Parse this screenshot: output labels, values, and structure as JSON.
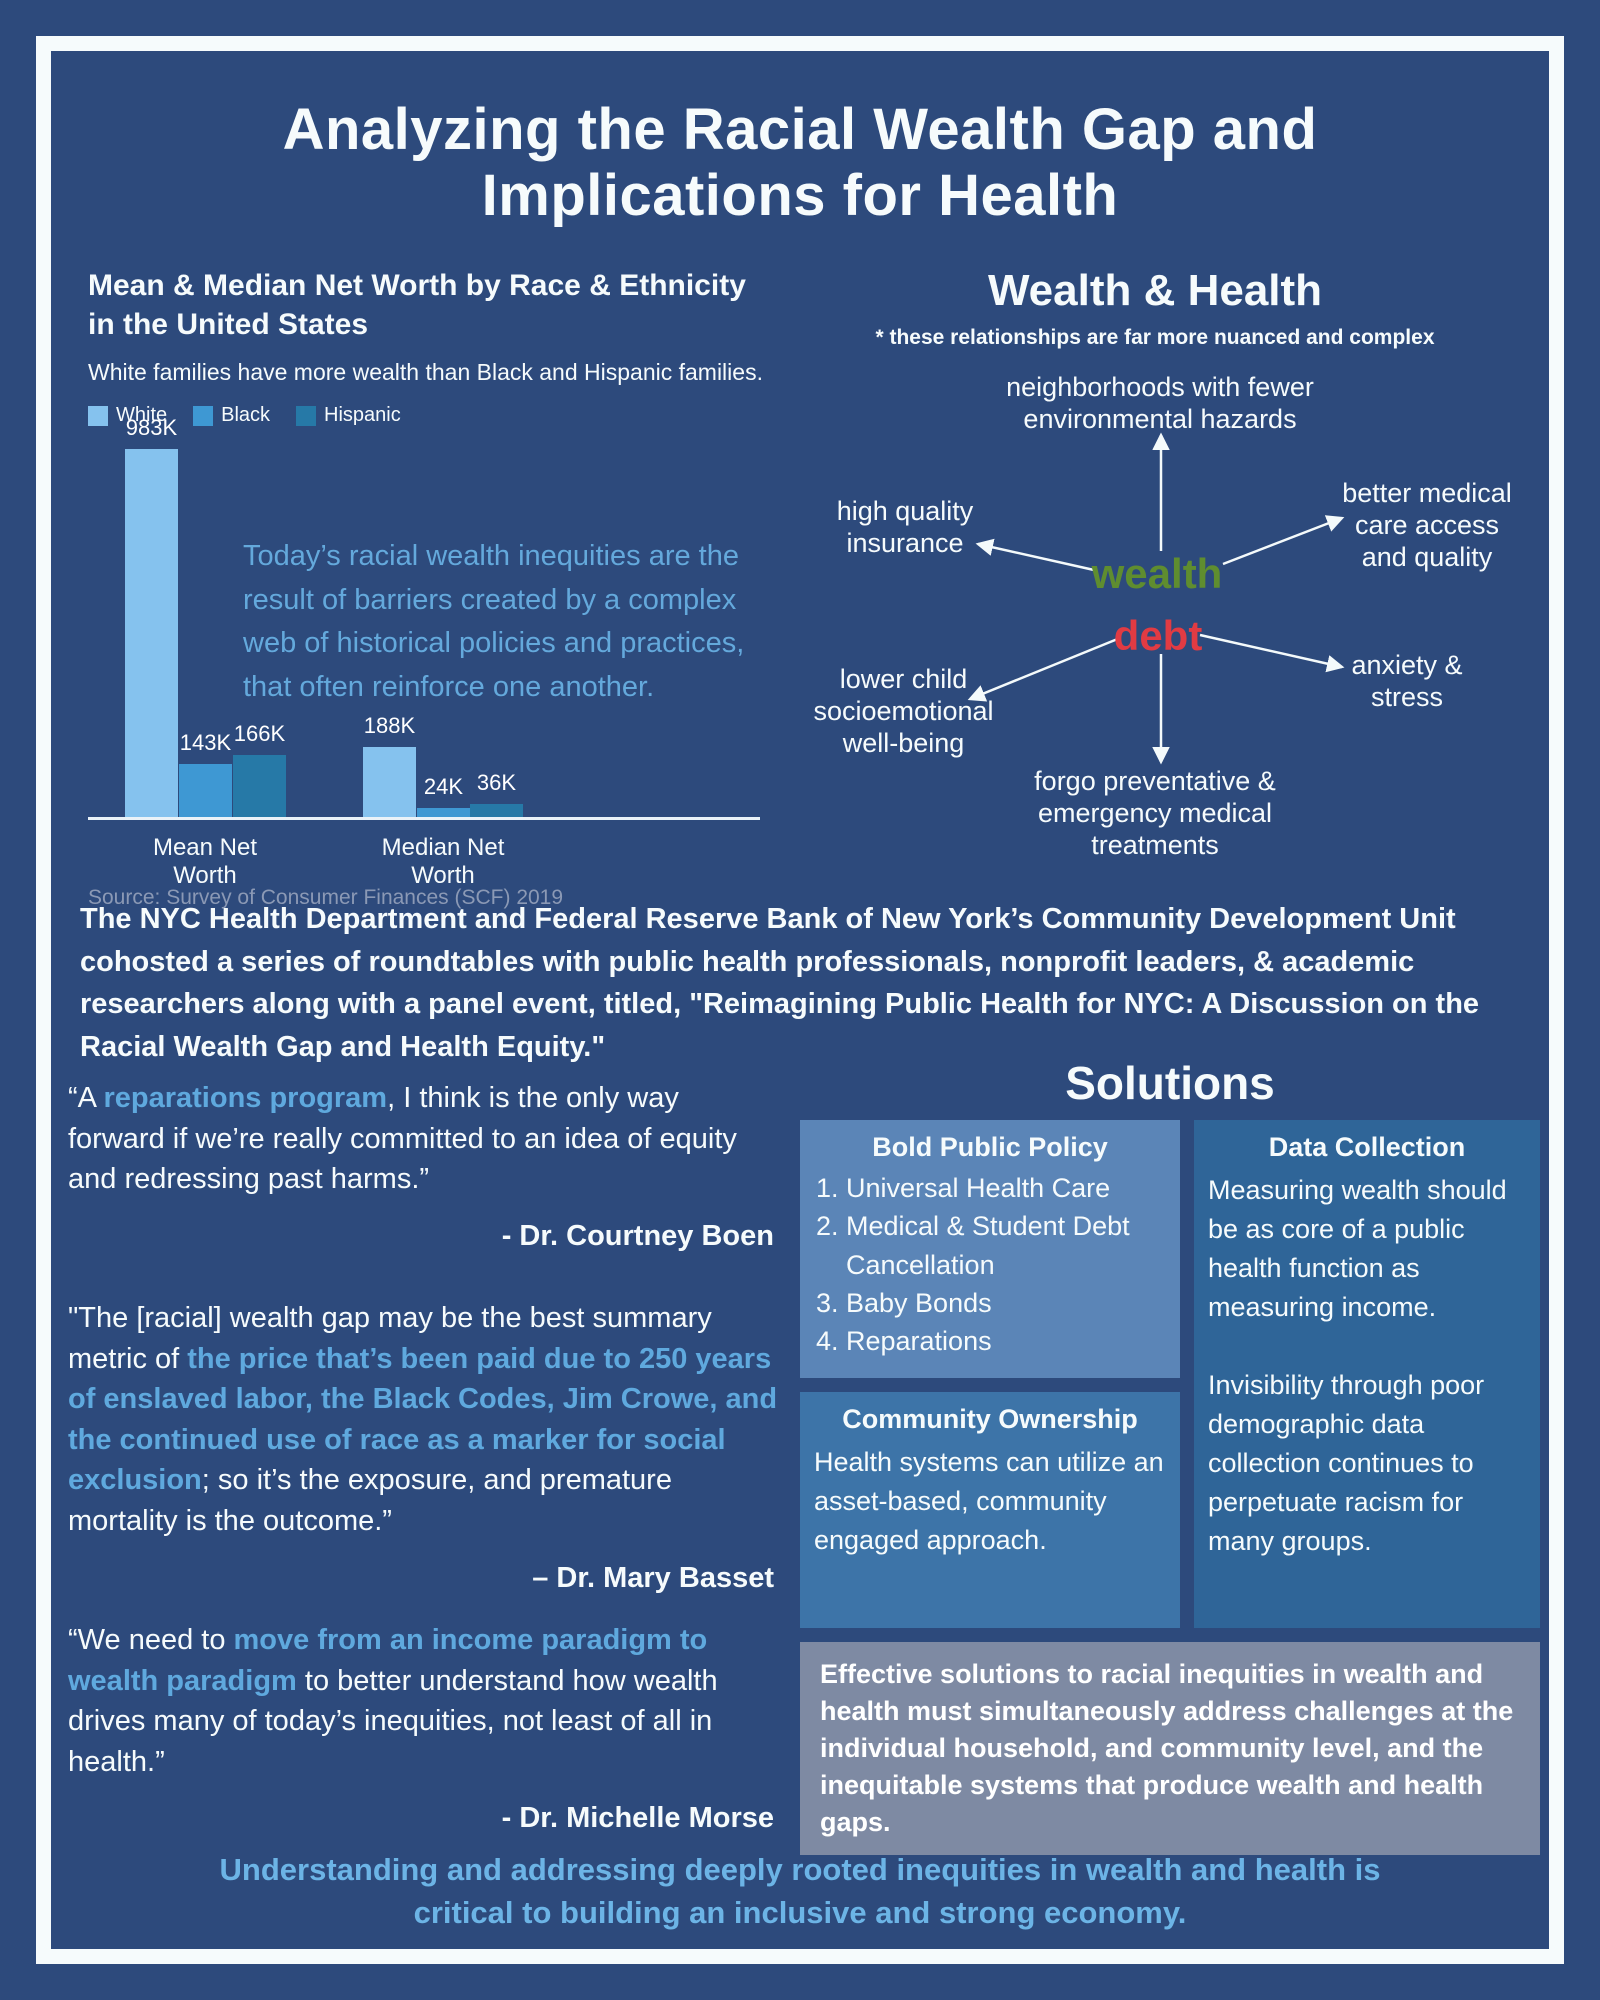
{
  "title": "Analyzing the Racial Wealth Gap and Implications for Health",
  "chart": {
    "title": "Mean & Median Net Worth by Race & Ethnicity in the United States",
    "subtitle": "White families have more wealth than Black and Hispanic families.",
    "annotation": "Today’s racial wealth inequities are the result of barriers created by a complex web of historical policies and practices, that often reinforce one another.",
    "source": "Source: Survey of Consumer Finances (SCF) 2019"
  },
  "chart_data": {
    "type": "bar",
    "categories": [
      "Mean Net Worth",
      "Median Net Worth"
    ],
    "series": [
      {
        "name": "White",
        "values": [
          983,
          188
        ],
        "color": "#85c2ee"
      },
      {
        "name": "Black",
        "values": [
          143,
          24
        ],
        "color": "#3e98d3"
      },
      {
        "name": "Hispanic",
        "values": [
          166,
          36
        ],
        "color": "#2679a7"
      }
    ],
    "value_labels": [
      [
        "983K",
        "143K",
        "166K"
      ],
      [
        "188K",
        "24K",
        "36K"
      ]
    ],
    "unit": "thousands of US dollars",
    "ylim": [
      0,
      1000
    ],
    "grid": false,
    "legend_position": "top-left",
    "title": "Mean & Median Net Worth by Race & Ethnicity in the United States",
    "xlabel": "",
    "ylabel": ""
  },
  "wealth_health": {
    "heading": "Wealth & Health",
    "note": "* these relationships are far more nuanced and complex",
    "wealth_label": "wealth",
    "debt_label": "debt",
    "wealth_color": "#5f8d2f",
    "debt_color": "#e13b43",
    "nodes": {
      "top": "neighborhoods with fewer environmental hazards",
      "left": "high quality insurance",
      "right": "better medical care access and quality",
      "bottom_left": "lower child socioemotional well-being",
      "bottom_right": "anxiety & stress",
      "bottom": "forgo preventative & emergency medical treatments"
    }
  },
  "intro": "The NYC Health Department and Federal Reserve Bank of New York’s Community Development Unit cohosted a series of roundtables with public health professionals, nonprofit leaders, & academic researchers along with a panel event, titled, \"Reimagining Public Health for NYC: A Discussion on the Racial Wealth Gap and Health Equity.\"",
  "quotes": [
    {
      "prefix": "“A ",
      "highlight": "reparations program",
      "suffix": ", I think is the only way forward if we’re really committed to an idea of equity and redressing past harms.”",
      "attribution": "- Dr. Courtney Boen"
    },
    {
      "prefix": "\"The [racial] wealth gap may be the best summary metric of ",
      "highlight": "the price that’s been paid due to 250 years of enslaved labor, the Black Codes, Jim Crowe, and the continued use of race as a marker for social exclusion",
      "suffix": "; so it’s the exposure, and premature mortality is the outcome.”",
      "attribution": "– Dr. Mary Basset"
    },
    {
      "prefix": "“We need to ",
      "highlight": "move from an income paradigm to wealth paradigm",
      "suffix": " to better understand how wealth drives many of today’s inequities, not least of all in health.”",
      "attribution": "- Dr. Michelle Morse"
    }
  ],
  "solutions": {
    "heading": "Solutions",
    "bold_public_policy": {
      "title": "Bold Public Policy",
      "items": [
        "Universal Health Care",
        "Medical & Student Debt Cancellation",
        "Baby Bonds",
        "Reparations"
      ]
    },
    "data_collection": {
      "title": "Data Collection",
      "body1": "Measuring wealth should be as core of a public health function as measuring income.",
      "body2": "Invisibility through poor demographic data collection continues to perpetuate racism for many groups."
    },
    "community_ownership": {
      "title": "Community Ownership",
      "body": "Health systems can utilize an asset-based, community engaged approach."
    },
    "summary": "Effective solutions to racial inequities in wealth and health must simultaneously address challenges at the individual household, and community level, and the inequitable systems that produce wealth and health gaps."
  },
  "footer": "Understanding and addressing deeply rooted inequities in wealth and health is critical to building an inclusive and strong economy.",
  "colors": {
    "background": "#2d4a7c",
    "frame": "#f6fbfc",
    "accent_light_blue": "#6cb4e6",
    "annotation_blue": "#64a9dc",
    "bar_white": "#85c2ee",
    "bar_black": "#3e98d3",
    "bar_hispanic": "#2679a7",
    "wealth_green": "#5f8d2f",
    "debt_red": "#e13b43",
    "box_policy": "#5b85b7",
    "box_community": "#3d74a8",
    "box_data": "#2f6598",
    "box_summary": "#7e8aa3",
    "source_gray": "#8b99b5"
  }
}
